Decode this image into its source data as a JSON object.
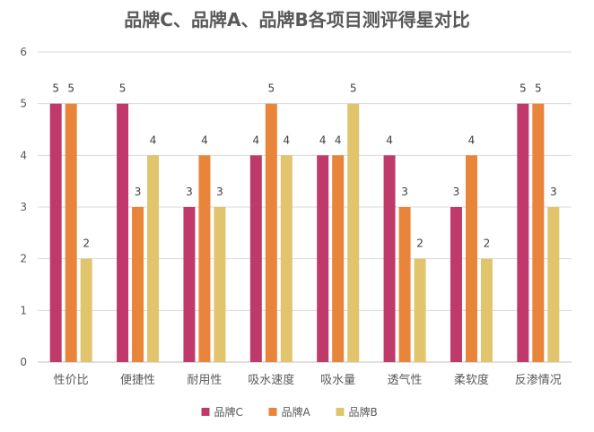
{
  "chart_data": {
    "type": "bar",
    "title": "品牌C、品牌A、品牌B各项目测评得星对比",
    "xlabel": "",
    "ylabel": "",
    "categories": [
      "性价比",
      "便捷性",
      "耐用性",
      "吸水速度",
      "吸水量",
      "透气性",
      "柔软度",
      "反渗情况"
    ],
    "series": [
      {
        "name": "品牌C",
        "color": "#C0396B",
        "values": [
          5,
          5,
          3,
          4,
          4,
          4,
          3,
          5
        ]
      },
      {
        "name": "品牌A",
        "color": "#E8853A",
        "values": [
          5,
          3,
          4,
          5,
          4,
          3,
          4,
          5
        ]
      },
      {
        "name": "品牌B",
        "color": "#E2C46D",
        "values": [
          2,
          4,
          3,
          4,
          5,
          2,
          2,
          3
        ]
      }
    ],
    "ylim": [
      0,
      6
    ],
    "yticks": [
      0,
      1,
      2,
      3,
      4,
      5,
      6
    ],
    "grid": true,
    "data_labels": true,
    "legend_position": "bottom-center"
  }
}
